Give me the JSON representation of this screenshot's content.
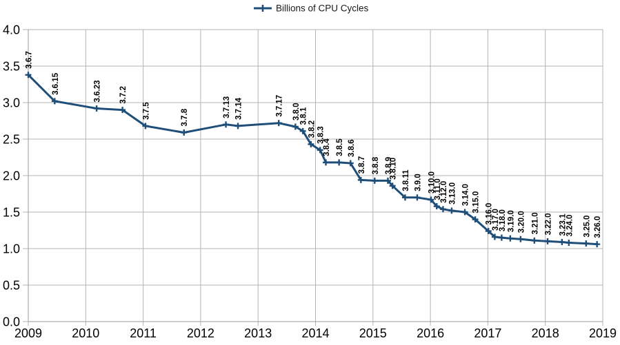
{
  "chart_data": {
    "type": "line",
    "title": "",
    "legend_label": "Billions of CPU Cycles",
    "legend_position": "top-center",
    "marker": "plus",
    "grid": true,
    "series_color": "#1f4e79",
    "grid_color": "#b3b3b3",
    "axis_color": "#9a9a9a",
    "data_label_color": "#000000",
    "xlabel": "",
    "ylabel": "",
    "xlim": [
      2009,
      2019
    ],
    "ylim": [
      0.0,
      4.0
    ],
    "x_ticks": [
      "2009",
      "2010",
      "2011",
      "2012",
      "2013",
      "2014",
      "2015",
      "2016",
      "2017",
      "2018",
      "2019"
    ],
    "y_ticks": [
      "0.0",
      "0.5",
      "1.0",
      "1.5",
      "2.0",
      "2.5",
      "3.0",
      "3.5",
      "4.0"
    ],
    "points": [
      {
        "label": "3.6.7",
        "x": 2009.0,
        "y": 3.38
      },
      {
        "label": "3.6.15",
        "x": 2009.46,
        "y": 3.02
      },
      {
        "label": "3.6.23",
        "x": 2010.19,
        "y": 2.92
      },
      {
        "label": "3.7.2",
        "x": 2010.64,
        "y": 2.9
      },
      {
        "label": "3.7.5",
        "x": 2011.04,
        "y": 2.68
      },
      {
        "label": "3.7.8",
        "x": 2011.71,
        "y": 2.59
      },
      {
        "label": "3.7.13",
        "x": 2012.44,
        "y": 2.7
      },
      {
        "label": "3.7.14",
        "x": 2012.65,
        "y": 2.68
      },
      {
        "label": "3.7.17",
        "x": 2013.36,
        "y": 2.72
      },
      {
        "label": "3.8.0",
        "x": 2013.65,
        "y": 2.67
      },
      {
        "label": "3.8.1",
        "x": 2013.78,
        "y": 2.61
      },
      {
        "label": "3.8.2",
        "x": 2013.92,
        "y": 2.43
      },
      {
        "label": "3.8.3",
        "x": 2014.08,
        "y": 2.35
      },
      {
        "label": "3.8.4",
        "x": 2014.18,
        "y": 2.18
      },
      {
        "label": "3.8.5",
        "x": 2014.41,
        "y": 2.18
      },
      {
        "label": "3.8.6",
        "x": 2014.61,
        "y": 2.17
      },
      {
        "label": "3.8.7",
        "x": 2014.79,
        "y": 1.94
      },
      {
        "label": "3.8.8",
        "x": 2015.03,
        "y": 1.93
      },
      {
        "label": "3.8.9",
        "x": 2015.26,
        "y": 1.93
      },
      {
        "label": "3.8.10",
        "x": 2015.34,
        "y": 1.86
      },
      {
        "label": "3.8.11",
        "x": 2015.56,
        "y": 1.7
      },
      {
        "label": "3.9.0",
        "x": 2015.77,
        "y": 1.7
      },
      {
        "label": "3.10.0",
        "x": 2016.01,
        "y": 1.67
      },
      {
        "label": "3.11.0",
        "x": 2016.11,
        "y": 1.58
      },
      {
        "label": "3.12.0",
        "x": 2016.22,
        "y": 1.54
      },
      {
        "label": "3.13.0",
        "x": 2016.37,
        "y": 1.52
      },
      {
        "label": "3.14.0",
        "x": 2016.6,
        "y": 1.5
      },
      {
        "label": "3.15.0",
        "x": 2016.78,
        "y": 1.4
      },
      {
        "label": "3.16.0",
        "x": 2017.01,
        "y": 1.24
      },
      {
        "label": "3.17.0",
        "x": 2017.12,
        "y": 1.16
      },
      {
        "label": "3.18.0",
        "x": 2017.24,
        "y": 1.15
      },
      {
        "label": "3.19.0",
        "x": 2017.39,
        "y": 1.14
      },
      {
        "label": "3.20.0",
        "x": 2017.57,
        "y": 1.13
      },
      {
        "label": "3.21.0",
        "x": 2017.81,
        "y": 1.11
      },
      {
        "label": "3.22.0",
        "x": 2018.04,
        "y": 1.1
      },
      {
        "label": "3.23.1",
        "x": 2018.29,
        "y": 1.09
      },
      {
        "label": "3.24.0",
        "x": 2018.41,
        "y": 1.08
      },
      {
        "label": "3.25.0",
        "x": 2018.71,
        "y": 1.07
      },
      {
        "label": "3.26.0",
        "x": 2018.9,
        "y": 1.06
      }
    ]
  }
}
